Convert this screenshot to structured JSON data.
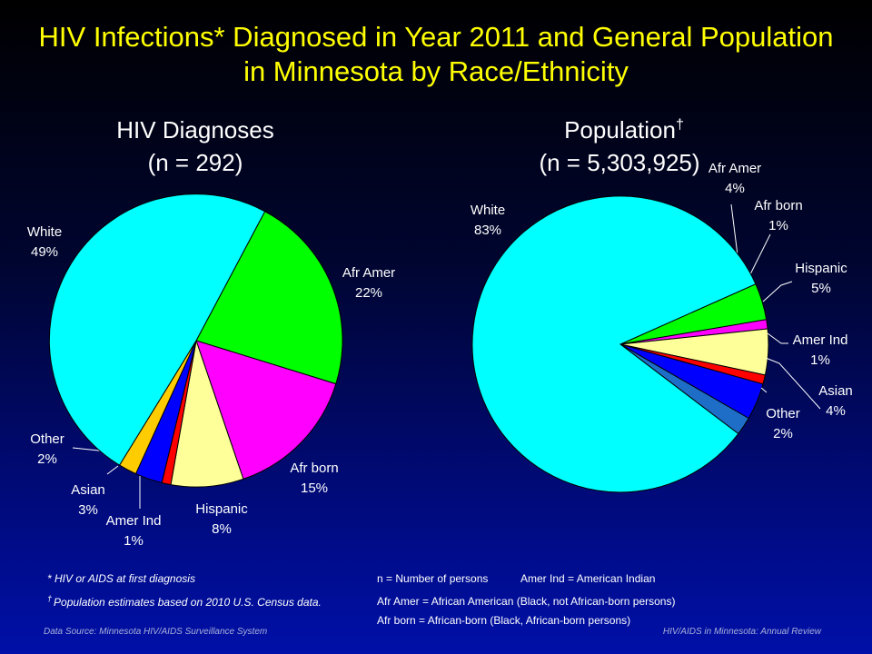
{
  "title": {
    "line1": "HIV Infections* Diagnosed in Year 2011 and General Population",
    "line2": "in Minnesota by Race/Ethnicity"
  },
  "chart_data": [
    {
      "type": "pie",
      "title": "HIV Diagnoses",
      "subtitle": "(n = 292)",
      "slices": [
        {
          "name": "Afr Amer",
          "value": 22,
          "pct_label": "22%",
          "color": "#00ff00"
        },
        {
          "name": "Afr born",
          "value": 15,
          "pct_label": "15%",
          "color": "#ff00ff"
        },
        {
          "name": "Hispanic",
          "value": 8,
          "pct_label": "8%",
          "color": "#ffff99"
        },
        {
          "name": "Amer Ind",
          "value": 1,
          "pct_label": "1%",
          "color": "#ff0000"
        },
        {
          "name": "Asian",
          "value": 3,
          "pct_label": "3%",
          "color": "#0000ff"
        },
        {
          "name": "Other",
          "value": 2,
          "pct_label": "2%",
          "color": "#ffcc00"
        },
        {
          "name": "White",
          "value": 49,
          "pct_label": "49%",
          "color": "#00ffff"
        }
      ]
    },
    {
      "type": "pie",
      "title": "Population",
      "title_mark": "†",
      "subtitle": "(n = 5,303,925)",
      "slices": [
        {
          "name": "Afr Amer",
          "value": 4,
          "pct_label": "4%",
          "color": "#00ff00"
        },
        {
          "name": "Afr born",
          "value": 1,
          "pct_label": "1%",
          "color": "#ff00ff"
        },
        {
          "name": "Hispanic",
          "value": 5,
          "pct_label": "5%",
          "color": "#ffff99"
        },
        {
          "name": "Amer Ind",
          "value": 1,
          "pct_label": "1%",
          "color": "#ff0000"
        },
        {
          "name": "Asian",
          "value": 4,
          "pct_label": "4%",
          "color": "#0000ff"
        },
        {
          "name": "Other",
          "value": 2,
          "pct_label": "2%",
          "color": "#1e6ec8"
        },
        {
          "name": "White",
          "value": 83,
          "pct_label": "83%",
          "color": "#00ffff"
        }
      ]
    }
  ],
  "footnotes": {
    "hiv": "* HIV or AIDS at first diagnosis",
    "pop_mark": "†",
    "pop": "Population estimates based on 2010 U.S. Census data.",
    "def_n": "n = Number of persons",
    "def_ai": "Amer Ind = American Indian",
    "def_aa": "Afr Amer = African American (Black, not African-born persons)",
    "def_ab": "Afr born = African-born (Black, African-born persons)"
  },
  "source": {
    "left": "Data Source: Minnesota HIV/AIDS Surveillance System",
    "right": "HIV/AIDS in Minnesota: Annual Review"
  }
}
